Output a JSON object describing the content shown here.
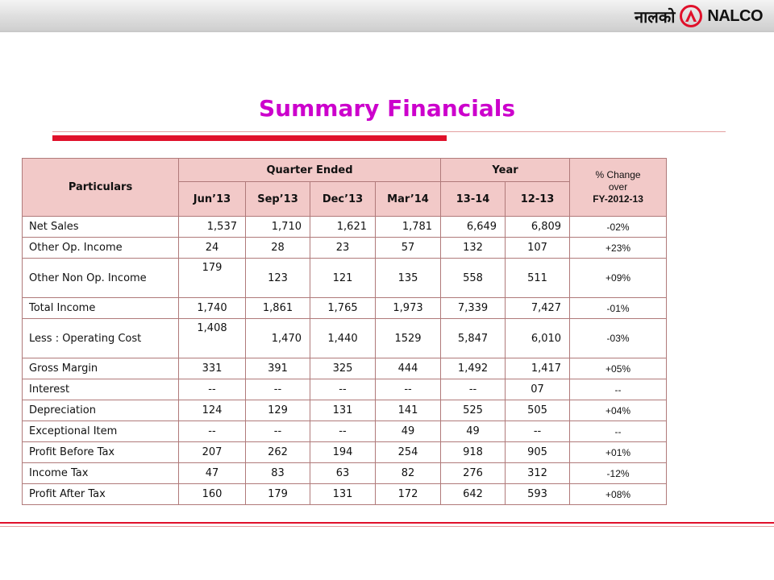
{
  "logo": {
    "hindi": "नालको",
    "english": "NALCO"
  },
  "title": "Summary Financials",
  "table": {
    "header": {
      "particulars": "Particulars",
      "quarter_group": "Quarter Ended",
      "year_group": "Year",
      "pct_line1": "% Change",
      "pct_line2": "over",
      "pct_line3": "FY-2012-13",
      "quarters": [
        "Jun’13",
        "Sep’13",
        "Dec’13",
        "Mar’14"
      ],
      "years": [
        "13-14",
        "12-13"
      ]
    },
    "rows": [
      {
        "label": "Net Sales",
        "values": [
          "1,537",
          "1,710",
          "1,621",
          "1,781",
          "6,649",
          "6,809"
        ],
        "change": "-02%"
      },
      {
        "label": "Other  Op. Income",
        "values": [
          "24",
          "28",
          "23",
          "57",
          "132",
          "107"
        ],
        "change": "+23%"
      },
      {
        "label": "Other  Non Op. Income",
        "values": [
          "179",
          "123",
          "121",
          "135",
          "558",
          "511"
        ],
        "change": "+09%"
      },
      {
        "label": "Total Income",
        "values": [
          "1,740",
          "1,861",
          "1,765",
          "1,973",
          "7,339",
          "7,427"
        ],
        "change": "-01%"
      },
      {
        "label": "Less : Operating Cost",
        "values": [
          "1,408",
          "1,470",
          "1,440",
          "1529",
          "5,847",
          "6,010"
        ],
        "change": "-03%"
      },
      {
        "label": "Gross Margin",
        "values": [
          "331",
          "391",
          "325",
          "444",
          "1,492",
          "1,417"
        ],
        "change": "+05%"
      },
      {
        "label": "Interest",
        "values": [
          "--",
          "--",
          "--",
          "--",
          "--",
          "07"
        ],
        "change": "--"
      },
      {
        "label": "Depreciation",
        "values": [
          "124",
          "129",
          "131",
          "141",
          "525",
          "505"
        ],
        "change": "+04%"
      },
      {
        "label": "Exceptional Item",
        "values": [
          "--",
          "--",
          "--",
          "49",
          "49",
          "--"
        ],
        "change": "--"
      },
      {
        "label": "Profit Before Tax",
        "values": [
          "207",
          "262",
          "194",
          "254",
          "918",
          "905"
        ],
        "change": "+01%"
      },
      {
        "label": "Income Tax",
        "values": [
          "47",
          "83",
          "63",
          "82",
          "276",
          "312"
        ],
        "change": "-12%"
      },
      {
        "label": "Profit After Tax",
        "values": [
          "160",
          "179",
          "131",
          "172",
          "642",
          "593"
        ],
        "change": "+08%"
      }
    ]
  }
}
